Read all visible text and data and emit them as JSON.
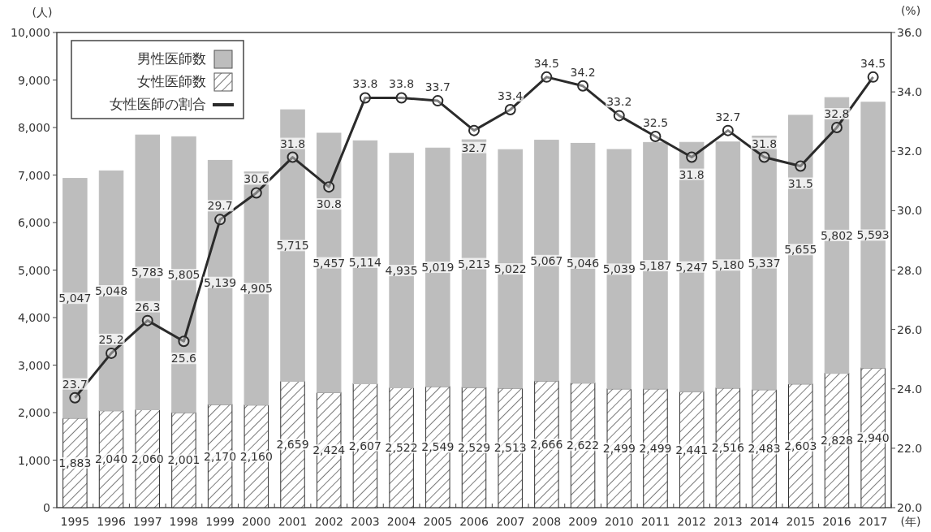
{
  "chart_data": {
    "type": "bar",
    "stacked": true,
    "ylabel": "(人)",
    "y2label": "(%)",
    "xlabel": "(年)",
    "categories": [
      "1995",
      "1996",
      "1997",
      "1998",
      "1999",
      "2000",
      "2001",
      "2002",
      "2003",
      "2004",
      "2005",
      "2006",
      "2007",
      "2008",
      "2009",
      "2010",
      "2011",
      "2012",
      "2013",
      "2014",
      "2015",
      "2016",
      "2017"
    ],
    "series": [
      {
        "name": "女性医師数",
        "color": "#333333",
        "values": [
          1883,
          2040,
          2060,
          2001,
          2170,
          2160,
          2659,
          2424,
          2607,
          2522,
          2549,
          2529,
          2513,
          2666,
          2622,
          2499,
          2499,
          2441,
          2516,
          2483,
          2603,
          2828,
          2940
        ],
        "value_labels": [
          "1,883",
          "2,040",
          "2,060",
          "2,001",
          "2,170",
          "2,160",
          "2,659",
          "2,424",
          "2,607",
          "2,522",
          "2,549",
          "2,529",
          "2,513",
          "2,666",
          "2,622",
          "2,499",
          "2,499",
          "2,441",
          "2,516",
          "2,483",
          "2,603",
          "2,828",
          "2,940"
        ]
      },
      {
        "name": "男性医師数",
        "color": "#bdbdbd",
        "values": [
          5047,
          5048,
          5783,
          5805,
          5139,
          4905,
          5715,
          5457,
          5114,
          4935,
          5019,
          5213,
          5022,
          5067,
          5046,
          5039,
          5187,
          5247,
          5180,
          5337,
          5655,
          5802,
          5593
        ],
        "value_labels": [
          "5,047",
          "5,048",
          "5,783",
          "5,805",
          "5,139",
          "4,905",
          "5,715",
          "5,457",
          "5,114",
          "4,935",
          "5,019",
          "5,213",
          "5,022",
          "5,067",
          "5,046",
          "5,039",
          "5,187",
          "5,247",
          "5,180",
          "5,337",
          "5,655",
          "5,802",
          "5,593"
        ]
      },
      {
        "name": "女性医師の割合",
        "type": "line",
        "axis": "y2",
        "color": "#2b2b2b",
        "values": [
          23.7,
          25.2,
          26.3,
          25.6,
          29.7,
          30.6,
          31.8,
          30.8,
          33.8,
          33.8,
          33.7,
          32.7,
          33.4,
          34.5,
          34.2,
          33.2,
          32.5,
          31.8,
          32.7,
          31.8,
          31.5,
          32.8,
          34.5
        ]
      }
    ],
    "ylim": [
      0,
      10000
    ],
    "yticks": [
      {
        "value": 0,
        "label": "0"
      },
      {
        "value": 1000,
        "label": "1,000"
      },
      {
        "value": 2000,
        "label": "2,000"
      },
      {
        "value": 3000,
        "label": "3,000"
      },
      {
        "value": 4000,
        "label": "4,000"
      },
      {
        "value": 5000,
        "label": "5,000"
      },
      {
        "value": 6000,
        "label": "6,000"
      },
      {
        "value": 7000,
        "label": "7,000"
      },
      {
        "value": 8000,
        "label": "8,000"
      },
      {
        "value": 9000,
        "label": "9,000"
      },
      {
        "value": 10000,
        "label": "10,000"
      }
    ],
    "y2lim": [
      20,
      36
    ],
    "y2ticks": [
      {
        "value": 20,
        "label": "20.0"
      },
      {
        "value": 22,
        "label": "22.0"
      },
      {
        "value": 24,
        "label": "24.0"
      },
      {
        "value": 26,
        "label": "26.0"
      },
      {
        "value": 28,
        "label": "28.0"
      },
      {
        "value": 30,
        "label": "30.0"
      },
      {
        "value": 32,
        "label": "32.0"
      },
      {
        "value": 34,
        "label": "34.0"
      },
      {
        "value": 36,
        "label": "36.0"
      }
    ],
    "data_labels": true,
    "marker": "circle",
    "legend": "top left"
  }
}
